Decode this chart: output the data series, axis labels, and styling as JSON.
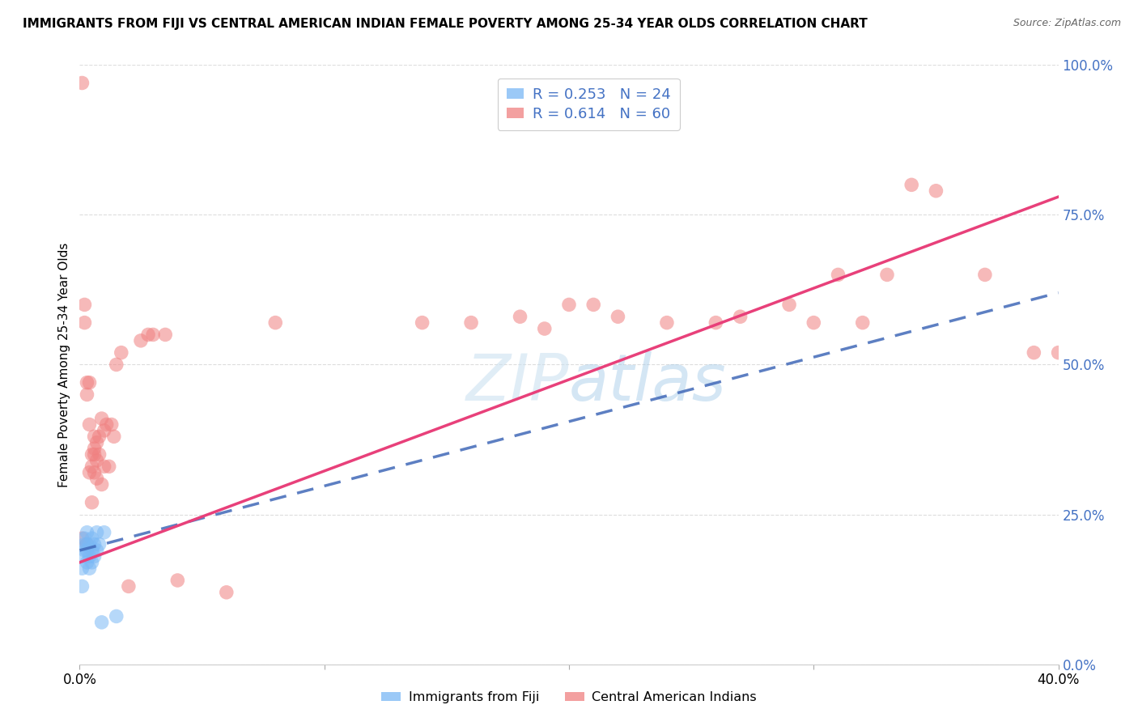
{
  "title": "IMMIGRANTS FROM FIJI VS CENTRAL AMERICAN INDIAN FEMALE POVERTY AMONG 25-34 YEAR OLDS CORRELATION CHART",
  "source": "Source: ZipAtlas.com",
  "ylabel": "Female Poverty Among 25-34 Year Olds",
  "legend_fiji": "Immigrants from Fiji",
  "legend_ca": "Central American Indians",
  "R_fiji": "0.253",
  "N_fiji": "24",
  "R_ca": "0.614",
  "N_ca": "60",
  "fiji_color": "#7ab8f5",
  "ca_color": "#f08080",
  "fiji_line_color": "#4169b8",
  "ca_line_color": "#e8407a",
  "fiji_dashed_color": "#90c4f0",
  "watermark_color": "#c8dff0",
  "right_axis_color": "#4472c4",
  "grid_color": "#dddddd",
  "fiji_points": [
    [
      0.001,
      0.13
    ],
    [
      0.001,
      0.16
    ],
    [
      0.002,
      0.18
    ],
    [
      0.002,
      0.19
    ],
    [
      0.002,
      0.2
    ],
    [
      0.002,
      0.21
    ],
    [
      0.003,
      0.17
    ],
    [
      0.003,
      0.19
    ],
    [
      0.003,
      0.2
    ],
    [
      0.003,
      0.22
    ],
    [
      0.004,
      0.16
    ],
    [
      0.004,
      0.18
    ],
    [
      0.004,
      0.2
    ],
    [
      0.005,
      0.17
    ],
    [
      0.005,
      0.19
    ],
    [
      0.005,
      0.21
    ],
    [
      0.006,
      0.18
    ],
    [
      0.006,
      0.2
    ],
    [
      0.007,
      0.19
    ],
    [
      0.007,
      0.22
    ],
    [
      0.008,
      0.2
    ],
    [
      0.009,
      0.07
    ],
    [
      0.01,
      0.22
    ],
    [
      0.015,
      0.08
    ]
  ],
  "ca_points": [
    [
      0.001,
      0.97
    ],
    [
      0.001,
      0.21
    ],
    [
      0.002,
      0.6
    ],
    [
      0.002,
      0.57
    ],
    [
      0.003,
      0.47
    ],
    [
      0.003,
      0.45
    ],
    [
      0.003,
      0.2
    ],
    [
      0.004,
      0.47
    ],
    [
      0.004,
      0.4
    ],
    [
      0.004,
      0.32
    ],
    [
      0.005,
      0.35
    ],
    [
      0.005,
      0.33
    ],
    [
      0.005,
      0.27
    ],
    [
      0.006,
      0.38
    ],
    [
      0.006,
      0.36
    ],
    [
      0.006,
      0.35
    ],
    [
      0.006,
      0.32
    ],
    [
      0.007,
      0.37
    ],
    [
      0.007,
      0.34
    ],
    [
      0.007,
      0.31
    ],
    [
      0.008,
      0.38
    ],
    [
      0.008,
      0.35
    ],
    [
      0.009,
      0.41
    ],
    [
      0.009,
      0.3
    ],
    [
      0.01,
      0.39
    ],
    [
      0.01,
      0.33
    ],
    [
      0.011,
      0.4
    ],
    [
      0.012,
      0.33
    ],
    [
      0.013,
      0.4
    ],
    [
      0.014,
      0.38
    ],
    [
      0.015,
      0.5
    ],
    [
      0.017,
      0.52
    ],
    [
      0.02,
      0.13
    ],
    [
      0.025,
      0.54
    ],
    [
      0.028,
      0.55
    ],
    [
      0.03,
      0.55
    ],
    [
      0.035,
      0.55
    ],
    [
      0.04,
      0.14
    ],
    [
      0.06,
      0.12
    ],
    [
      0.08,
      0.57
    ],
    [
      0.14,
      0.57
    ],
    [
      0.16,
      0.57
    ],
    [
      0.18,
      0.58
    ],
    [
      0.19,
      0.56
    ],
    [
      0.2,
      0.6
    ],
    [
      0.21,
      0.6
    ],
    [
      0.22,
      0.58
    ],
    [
      0.24,
      0.57
    ],
    [
      0.26,
      0.57
    ],
    [
      0.27,
      0.58
    ],
    [
      0.29,
      0.6
    ],
    [
      0.3,
      0.57
    ],
    [
      0.31,
      0.65
    ],
    [
      0.32,
      0.57
    ],
    [
      0.33,
      0.65
    ],
    [
      0.34,
      0.8
    ],
    [
      0.35,
      0.79
    ],
    [
      0.37,
      0.65
    ],
    [
      0.39,
      0.52
    ],
    [
      0.4,
      0.52
    ]
  ]
}
